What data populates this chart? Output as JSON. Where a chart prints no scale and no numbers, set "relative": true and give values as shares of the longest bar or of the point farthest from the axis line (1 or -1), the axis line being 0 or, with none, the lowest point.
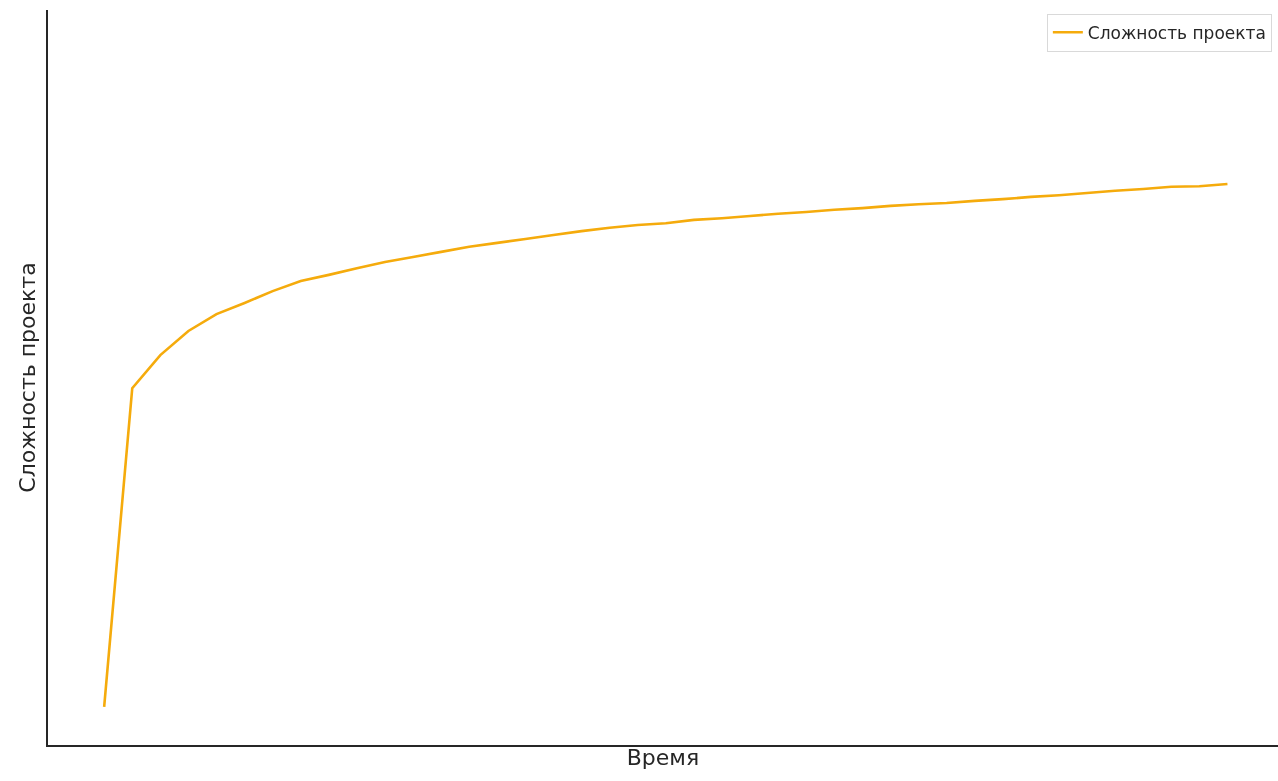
{
  "chart_data": {
    "type": "line",
    "xlabel": "Время",
    "ylabel": "Сложность проекта",
    "relative": true,
    "legend": "top right",
    "categories": [
      null,
      null,
      null,
      null,
      null,
      null,
      null,
      null,
      null,
      null,
      null,
      null,
      null,
      null,
      null,
      null,
      null,
      null,
      null,
      null,
      null,
      null,
      null,
      null,
      null,
      null,
      null,
      null,
      null,
      null,
      null,
      null,
      null,
      null,
      null,
      null,
      null,
      null,
      null,
      null,
      null
    ],
    "series": [
      {
        "name": "Сложность проекта",
        "color": "#f5ab0c",
        "values": [
          0.068,
          0.636,
          0.695,
          0.738,
          0.768,
          0.788,
          0.809,
          0.827,
          0.838,
          0.85,
          0.861,
          0.87,
          0.879,
          0.888,
          0.895,
          0.902,
          0.909,
          0.916,
          0.922,
          0.927,
          0.93,
          0.936,
          0.939,
          0.943,
          0.947,
          0.95,
          0.954,
          0.957,
          0.961,
          0.964,
          0.966,
          0.97,
          0.973,
          0.977,
          0.98,
          0.984,
          0.988,
          0.991,
          0.995,
          0.996,
          1
        ]
      }
    ]
  }
}
